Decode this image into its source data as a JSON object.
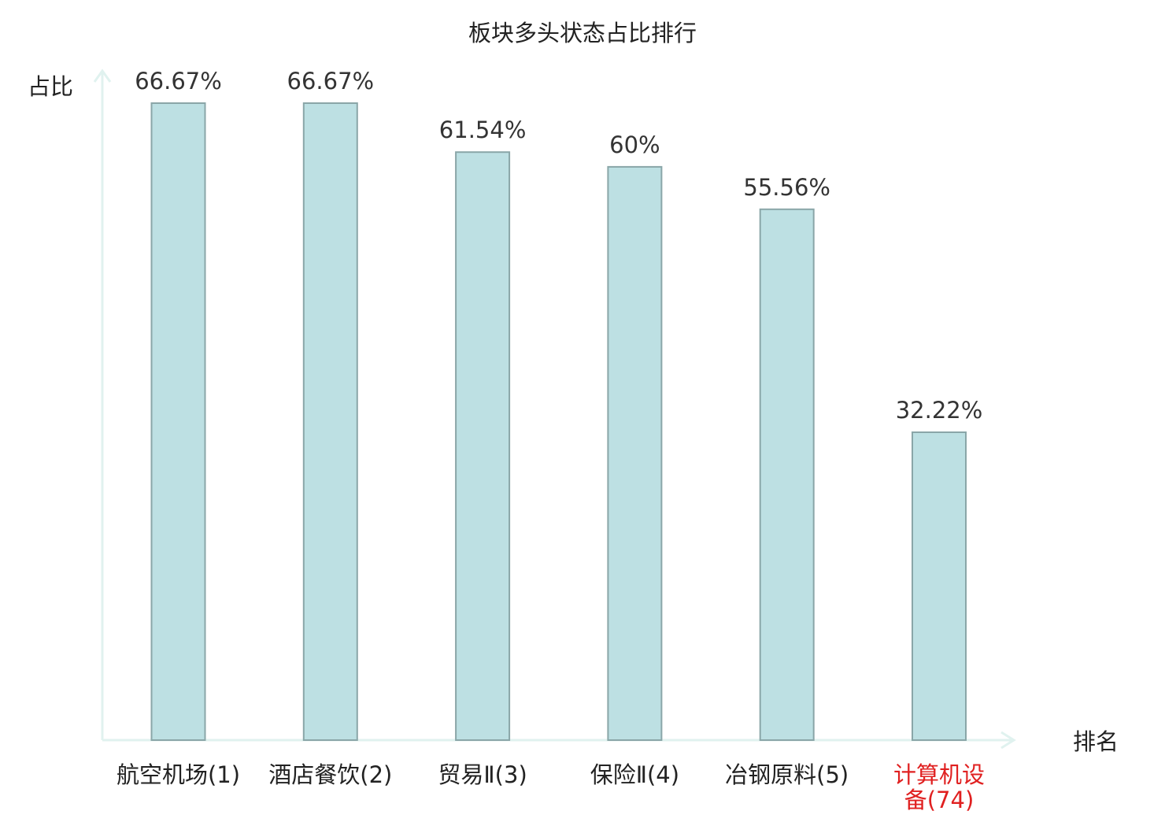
{
  "chart_data": {
    "type": "bar",
    "title": "板块多头状态占比排行",
    "xlabel": "排名",
    "ylabel": "占比",
    "categories": [
      "航空机场(1)",
      "酒店餐饮(2)",
      "贸易Ⅱ(3)",
      "保险Ⅱ(4)",
      "冶钢原料(5)",
      "计算机设备(74)"
    ],
    "values": [
      66.67,
      66.67,
      61.54,
      60,
      55.56,
      32.22
    ],
    "data_labels": [
      "66.67%",
      "66.67%",
      "61.54%",
      "60%",
      "55.56%",
      "32.22%"
    ],
    "value_unit": "%",
    "highlight_category": "计算机设备(74)",
    "ylim": [
      0,
      66.67
    ],
    "grid": false,
    "legend": "none",
    "colors": {
      "bar_fill": "#bde0e3",
      "bar_stroke": "#8aa6a8",
      "axis": "#e0f2ef",
      "text": "#222222",
      "label_text": "#333333",
      "highlight_text": "#e02020"
    }
  }
}
